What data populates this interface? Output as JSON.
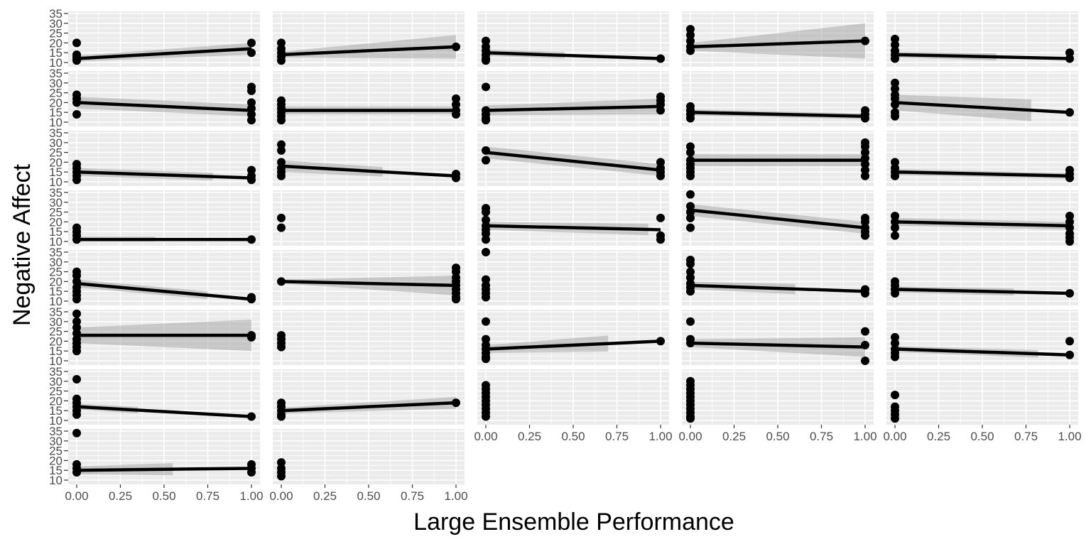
{
  "chart_data": {
    "type": "scatter",
    "facet": {
      "rows": 8,
      "cols": 5,
      "panel_count": 37
    },
    "xlabel": "Large Ensemble Performance",
    "ylabel": "Negative Affect",
    "xlim": [
      0,
      1
    ],
    "ylim": [
      10,
      35
    ],
    "x_ticks": [
      0,
      0.25,
      0.5,
      0.75,
      1
    ],
    "x_tick_labels": [
      "0.00",
      "0.25",
      "0.50",
      "0.75",
      "1.00"
    ],
    "y_ticks": [
      10,
      15,
      20,
      25,
      30,
      35
    ],
    "y_tick_labels": [
      "10",
      "15",
      "20",
      "25",
      "30",
      "35"
    ],
    "grid": true,
    "colors": {
      "panel_bg": "#ebebeb",
      "grid": "#ffffff",
      "points": "#000000",
      "line": "#000000",
      "ribbon": "#999999"
    },
    "panels": [
      {
        "points0": [
          20,
          14,
          13,
          12,
          11
        ],
        "points1": [
          20,
          15
        ],
        "line": [
          12,
          17
        ],
        "ribbon_end": 1,
        "ribbon_width": [
          1.5,
          3
        ]
      },
      {
        "points0": [
          20,
          17,
          15,
          13,
          11
        ],
        "points1": [
          18
        ],
        "line": [
          14,
          18
        ],
        "ribbon_end": 1,
        "ribbon_width": [
          1.5,
          6
        ]
      },
      {
        "points0": [
          21,
          18,
          16,
          14,
          12,
          11
        ],
        "points1": [
          12
        ],
        "line": [
          15,
          12
        ],
        "ribbon_end": 0.45,
        "ribbon_width": [
          1.5,
          2
        ]
      },
      {
        "points0": [
          27,
          24,
          21,
          18,
          16
        ],
        "points1": [
          21
        ],
        "line": [
          18,
          21
        ],
        "ribbon_end": 1,
        "ribbon_width": [
          2,
          9
        ]
      },
      {
        "points0": [
          22,
          19,
          16,
          14,
          12
        ],
        "points1": [
          15,
          12
        ],
        "line": [
          14,
          12
        ],
        "ribbon_end": 0.58,
        "ribbon_width": [
          1.5,
          2
        ]
      },
      {
        "points0": [
          24,
          22,
          20,
          14
        ],
        "points1": [
          28,
          26,
          20,
          17,
          14,
          11
        ],
        "line": [
          20,
          16
        ],
        "ribbon_end": 1,
        "ribbon_width": [
          3,
          3
        ]
      },
      {
        "points0": [
          21,
          19,
          17,
          15,
          13,
          11
        ],
        "points1": [
          22,
          19,
          16,
          14
        ],
        "line": [
          16,
          16
        ],
        "ribbon_end": 1,
        "ribbon_width": [
          2,
          2
        ]
      },
      {
        "points0": [
          28,
          16,
          14,
          12,
          11
        ],
        "points1": [
          23,
          21,
          19,
          16
        ],
        "line": [
          16,
          18
        ],
        "ribbon_end": 1,
        "ribbon_width": [
          2.5,
          4
        ]
      },
      {
        "points0": [
          18,
          16,
          14,
          12
        ],
        "points1": [
          16,
          14,
          12
        ],
        "line": [
          15,
          13
        ],
        "ribbon_end": 1,
        "ribbon_width": [
          1.5,
          1.5
        ]
      },
      {
        "points0": [
          30,
          27,
          24,
          22,
          19,
          15,
          13
        ],
        "points1": [
          15
        ],
        "line": [
          20,
          15
        ],
        "ribbon_end": 0.78,
        "ribbon_width": [
          4,
          6
        ]
      },
      {
        "points0": [
          19,
          17,
          15,
          13,
          11
        ],
        "points1": [
          16,
          13,
          11
        ],
        "line": [
          15,
          12
        ],
        "ribbon_end": 0.78,
        "ribbon_width": [
          2,
          2
        ]
      },
      {
        "points0": [
          29,
          26,
          20,
          17,
          15,
          13
        ],
        "points1": [
          14,
          12
        ],
        "line": [
          18,
          13
        ],
        "ribbon_end": 0.58,
        "ribbon_width": [
          3,
          2
        ]
      },
      {
        "points0": [
          26,
          21
        ],
        "points1": [
          20,
          17,
          15,
          13
        ],
        "line": [
          25,
          16
        ],
        "ribbon_end": 1,
        "ribbon_width": [
          3,
          3
        ]
      },
      {
        "points0": [
          28,
          25,
          21,
          19,
          17,
          15,
          13
        ],
        "points1": [
          30,
          28,
          25,
          22,
          19,
          16,
          13
        ],
        "line": [
          21,
          21
        ],
        "ribbon_end": 1,
        "ribbon_width": [
          3,
          3
        ]
      },
      {
        "points0": [
          20,
          17,
          15,
          13
        ],
        "points1": [
          16,
          14,
          12
        ],
        "line": [
          15,
          13
        ],
        "ribbon_end": 1,
        "ribbon_width": [
          1.5,
          1.5
        ]
      },
      {
        "points0": [
          17,
          15,
          13,
          11
        ],
        "points1": [
          11
        ],
        "line": [
          11,
          11
        ],
        "ribbon_end": 0.45,
        "ribbon_width": [
          1.5,
          1.5
        ]
      },
      {
        "points0": [
          22,
          17
        ],
        "points1": [],
        "line": null,
        "ribbon_end": 0,
        "ribbon_width": [
          0,
          0
        ]
      },
      {
        "points0": [
          27,
          25,
          21,
          18,
          16,
          14,
          11
        ],
        "points1": [
          22,
          13,
          11
        ],
        "line": [
          18,
          16
        ],
        "ribbon_end": 0.93,
        "ribbon_width": [
          2,
          3
        ]
      },
      {
        "points0": [
          34,
          28,
          25,
          22,
          17
        ],
        "points1": [
          22,
          20,
          17,
          15,
          13
        ],
        "line": [
          26,
          17
        ],
        "ribbon_end": 1,
        "ribbon_width": [
          3,
          3
        ]
      },
      {
        "points0": [
          23,
          20,
          17,
          13
        ],
        "points1": [
          23,
          20,
          17,
          14,
          12,
          10
        ],
        "line": [
          20,
          18
        ],
        "ribbon_end": 1,
        "ribbon_width": [
          2,
          2
        ]
      },
      {
        "points0": [
          25,
          23,
          20,
          17,
          15,
          13,
          11
        ],
        "points1": [
          12,
          11
        ],
        "line": [
          19,
          11
        ],
        "ribbon_end": 0.75,
        "ribbon_width": [
          2,
          2
        ]
      },
      {
        "points0": [
          20
        ],
        "points1": [
          27,
          25,
          22,
          20,
          18,
          16,
          14,
          12,
          11
        ],
        "line": [
          20,
          18
        ],
        "ribbon_end": 1,
        "ribbon_width": [
          1,
          5
        ]
      },
      {
        "points0": [
          35,
          21,
          18,
          16,
          14,
          12
        ],
        "points1": [],
        "line": null,
        "ribbon_end": 0,
        "ribbon_width": [
          0,
          0
        ]
      },
      {
        "points0": [
          31,
          29,
          25,
          22,
          19,
          17,
          15
        ],
        "points1": [
          16,
          14
        ],
        "line": [
          18,
          15
        ],
        "ribbon_end": 0.6,
        "ribbon_width": [
          2,
          3
        ]
      },
      {
        "points0": [
          20,
          18,
          16,
          14
        ],
        "points1": [
          14
        ],
        "line": [
          16,
          14
        ],
        "ribbon_end": 0.68,
        "ribbon_width": [
          1.5,
          2
        ]
      },
      {
        "points0": [
          34,
          30,
          27,
          24,
          21,
          19,
          17,
          15
        ],
        "points1": [
          23,
          22
        ],
        "line": [
          23,
          23
        ],
        "ribbon_end": 1,
        "ribbon_width": [
          4,
          8
        ]
      },
      {
        "points0": [
          23,
          21,
          19,
          17
        ],
        "points1": [],
        "line": null,
        "ribbon_end": 0,
        "ribbon_width": [
          0,
          0
        ]
      },
      {
        "points0": [
          30,
          21,
          18,
          16,
          14,
          12,
          11
        ],
        "points1": [
          20
        ],
        "line": [
          16,
          20
        ],
        "ribbon_end": 0.7,
        "ribbon_width": [
          2,
          5
        ]
      },
      {
        "points0": [
          30,
          21,
          19
        ],
        "points1": [
          25,
          18,
          10
        ],
        "line": [
          19,
          17
        ],
        "ribbon_end": 1,
        "ribbon_width": [
          2,
          5
        ]
      },
      {
        "points0": [
          22,
          19,
          16,
          14,
          12
        ],
        "points1": [
          20,
          13
        ],
        "line": [
          16,
          13
        ],
        "ribbon_end": 0.82,
        "ribbon_width": [
          1.5,
          2
        ]
      },
      {
        "points0": [
          31,
          21,
          19,
          17,
          15,
          13
        ],
        "points1": [
          12
        ],
        "line": [
          17,
          12
        ],
        "ribbon_end": 0.35,
        "ribbon_width": [
          1.5,
          2
        ]
      },
      {
        "points0": [
          19,
          17,
          15,
          13,
          12
        ],
        "points1": [
          19
        ],
        "line": [
          15,
          19
        ],
        "ribbon_end": 1,
        "ribbon_width": [
          1.5,
          3
        ]
      },
      {
        "points0": [
          28,
          26,
          24,
          22,
          20,
          18,
          16,
          14,
          12
        ],
        "points1": [],
        "line": null,
        "ribbon_end": 0,
        "ribbon_width": [
          0,
          0
        ]
      },
      {
        "points0": [
          30,
          28,
          26,
          24,
          22,
          20,
          18,
          16,
          14,
          12,
          11
        ],
        "points1": [],
        "line": null,
        "ribbon_end": 0,
        "ribbon_width": [
          0,
          0
        ]
      },
      {
        "points0": [
          23,
          17,
          15,
          13,
          11
        ],
        "points1": [],
        "line": null,
        "ribbon_end": 0,
        "ribbon_width": [
          0,
          0
        ]
      },
      {
        "points0": [
          34,
          18,
          16,
          14
        ],
        "points1": [
          18,
          16,
          14
        ],
        "line": [
          15,
          16
        ],
        "ribbon_end": 0.55,
        "ribbon_width": [
          2,
          4
        ]
      },
      {
        "points0": [
          19,
          16,
          14,
          12
        ],
        "points1": [],
        "line": null,
        "ribbon_end": 0,
        "ribbon_width": [
          0,
          0
        ]
      }
    ]
  }
}
